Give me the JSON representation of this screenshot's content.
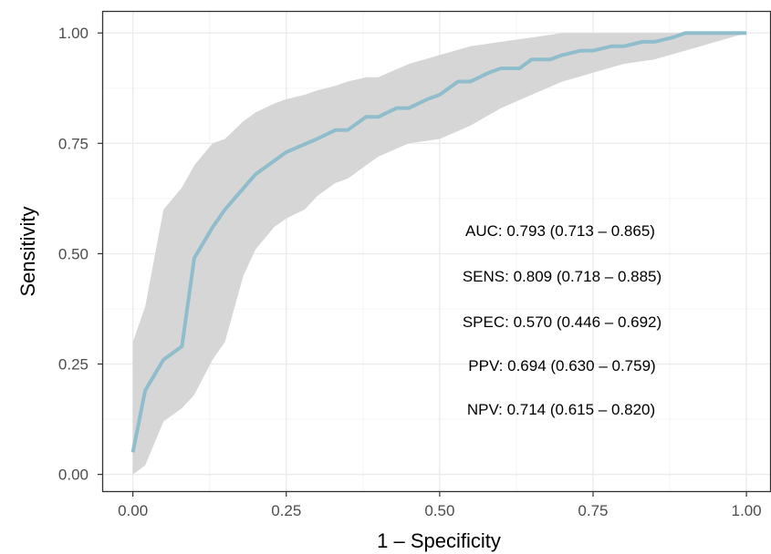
{
  "chart_data": {
    "type": "line",
    "xlabel": "1 – Specificity",
    "ylabel": "Sensitivity",
    "xlim": [
      -0.05,
      1.04
    ],
    "ylim": [
      -0.04,
      1.05
    ],
    "x_ticks": [
      "0.00",
      "0.25",
      "0.50",
      "0.75",
      "1.00"
    ],
    "y_ticks": [
      "0.00",
      "0.25",
      "0.50",
      "0.75",
      "1.00"
    ],
    "grid": true,
    "colors": {
      "line": "#8fbdcc",
      "band": "#d6d6d6",
      "grid_major": "#ebebeb",
      "grid_minor": "#f5f5f5",
      "frame": "#333333"
    },
    "series": [
      {
        "type": "line",
        "x": [
          0.0,
          0.02,
          0.05,
          0.08,
          0.1,
          0.13,
          0.15,
          0.2,
          0.25,
          0.3,
          0.33,
          0.35,
          0.38,
          0.4,
          0.43,
          0.45,
          0.48,
          0.5,
          0.53,
          0.55,
          0.58,
          0.6,
          0.63,
          0.65,
          0.68,
          0.7,
          0.73,
          0.75,
          0.78,
          0.8,
          0.83,
          0.85,
          0.88,
          0.9,
          0.93,
          0.95,
          1.0
        ],
        "y": [
          0.05,
          0.19,
          0.26,
          0.29,
          0.49,
          0.56,
          0.6,
          0.68,
          0.73,
          0.76,
          0.78,
          0.78,
          0.81,
          0.81,
          0.83,
          0.83,
          0.85,
          0.86,
          0.89,
          0.89,
          0.91,
          0.92,
          0.92,
          0.94,
          0.94,
          0.95,
          0.96,
          0.96,
          0.97,
          0.97,
          0.98,
          0.98,
          0.99,
          1.0,
          1.0,
          1.0,
          1.0
        ]
      },
      {
        "type": "area",
        "x": [
          0.0,
          0.02,
          0.05,
          0.08,
          0.1,
          0.13,
          0.15,
          0.18,
          0.2,
          0.23,
          0.25,
          0.28,
          0.3,
          0.33,
          0.35,
          0.38,
          0.4,
          0.45,
          0.5,
          0.55,
          0.6,
          0.65,
          0.7,
          0.75,
          0.8,
          0.85,
          0.9,
          0.95,
          1.0
        ],
        "upper": [
          0.3,
          0.38,
          0.6,
          0.65,
          0.7,
          0.75,
          0.76,
          0.8,
          0.82,
          0.84,
          0.85,
          0.86,
          0.87,
          0.88,
          0.89,
          0.9,
          0.9,
          0.93,
          0.95,
          0.97,
          0.98,
          0.99,
          1.0,
          1.0,
          1.0,
          1.0,
          1.0,
          1.0,
          1.0
        ],
        "lower": [
          0.0,
          0.02,
          0.12,
          0.15,
          0.18,
          0.26,
          0.3,
          0.45,
          0.51,
          0.56,
          0.58,
          0.6,
          0.63,
          0.66,
          0.67,
          0.7,
          0.72,
          0.75,
          0.76,
          0.79,
          0.83,
          0.86,
          0.89,
          0.91,
          0.93,
          0.94,
          0.96,
          0.98,
          1.0
        ]
      }
    ],
    "annotations": [
      "AUC: 0.793 (0.713 – 0.865)",
      "SENS: 0.809 (0.718 – 0.885)",
      "SPEC: 0.570 (0.446 – 0.692)",
      "PPV: 0.694 (0.630 – 0.759)",
      "NPV: 0.714 (0.615 – 0.820)"
    ]
  }
}
